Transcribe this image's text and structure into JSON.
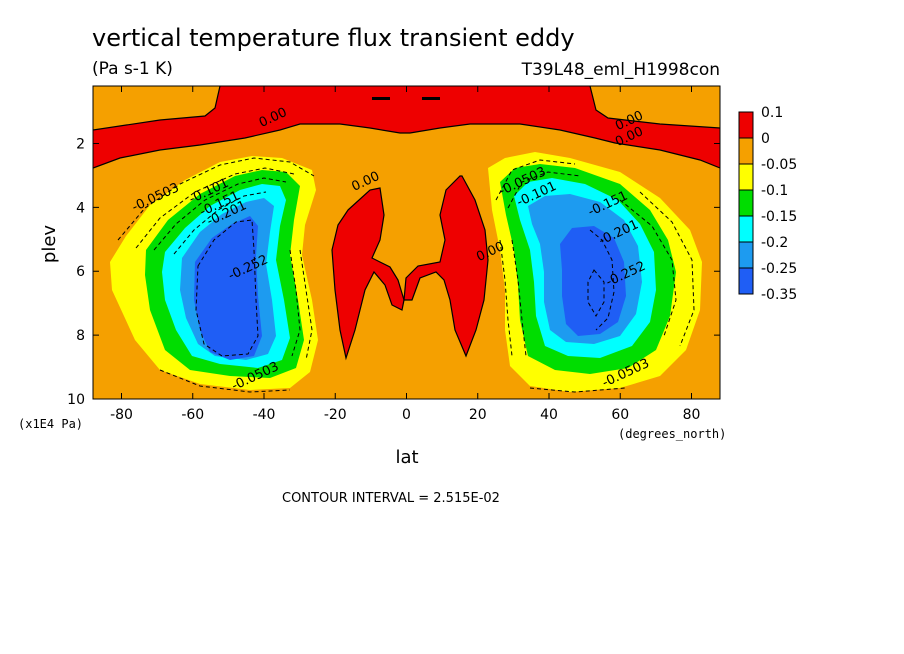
{
  "title": "vertical temperature flux transient eddy",
  "units": "(Pa s-1 K)",
  "run_label": "T39L48_eml_H1998con",
  "y_unit": "(x1E4 Pa)",
  "x_unit": "(degrees_north)",
  "contour_interval": "CONTOUR INTERVAL = 2.515E-02",
  "colors": {
    "red": "#ee0000",
    "orange": "#f5a000",
    "yellow": "#ffff00",
    "green": "#00dd00",
    "cyan": "#00ffff",
    "lightblue": "#1d9bf0",
    "blue": "#1f5ef5"
  },
  "chart_data": {
    "type": "contour",
    "title": "vertical temperature flux transient eddy",
    "xlabel": "lat",
    "ylabel": "plev",
    "xlim": [
      -88,
      88
    ],
    "ylim": [
      10,
      0.2
    ],
    "xticks": [
      "-80",
      "-60",
      "-40",
      "-20",
      "0",
      "20",
      "40",
      "60",
      "80"
    ],
    "yticks": [
      "2",
      "4",
      "6",
      "8",
      "10"
    ],
    "contour_interval": 0.02515,
    "contour_labels": [
      {
        "text": "0.00",
        "lat": -37,
        "plev": 1.3
      },
      {
        "text": "0.00",
        "lat": 63,
        "plev": 1.4
      },
      {
        "text": "0.00",
        "lat": 63,
        "plev": 1.9
      },
      {
        "text": "0.00",
        "lat": -11,
        "plev": 3.3
      },
      {
        "text": "0.00",
        "lat": 24,
        "plev": 5.5
      },
      {
        "text": "-0.0503",
        "lat": -70,
        "plev": 3.8
      },
      {
        "text": "-0.101",
        "lat": -55,
        "plev": 3.6
      },
      {
        "text": "-0.151",
        "lat": -52,
        "plev": 4.0
      },
      {
        "text": "-0.201",
        "lat": -50,
        "plev": 4.3
      },
      {
        "text": "-0.252",
        "lat": -44,
        "plev": 6.0
      },
      {
        "text": "-0.0503",
        "lat": -42,
        "plev": 9.4
      },
      {
        "text": "-0.0503",
        "lat": 33,
        "plev": 3.3
      },
      {
        "text": "-0.101",
        "lat": 37,
        "plev": 3.7
      },
      {
        "text": "-0.151",
        "lat": 57,
        "plev": 4.0
      },
      {
        "text": "-0.201",
        "lat": 60,
        "plev": 4.9
      },
      {
        "text": "-0.252",
        "lat": 62,
        "plev": 6.2
      },
      {
        "text": "-0.0503",
        "lat": 62,
        "plev": 9.3
      }
    ],
    "colorbar": {
      "labels": [
        "0.1",
        "0",
        "-0.05",
        "-0.1",
        "-0.15",
        "-0.2",
        "-0.25",
        "-0.35"
      ],
      "colors": [
        "#ee0000",
        "#f5a000",
        "#ffff00",
        "#00dd00",
        "#00ffff",
        "#1d9bf0",
        "#1f5ef5"
      ]
    }
  }
}
